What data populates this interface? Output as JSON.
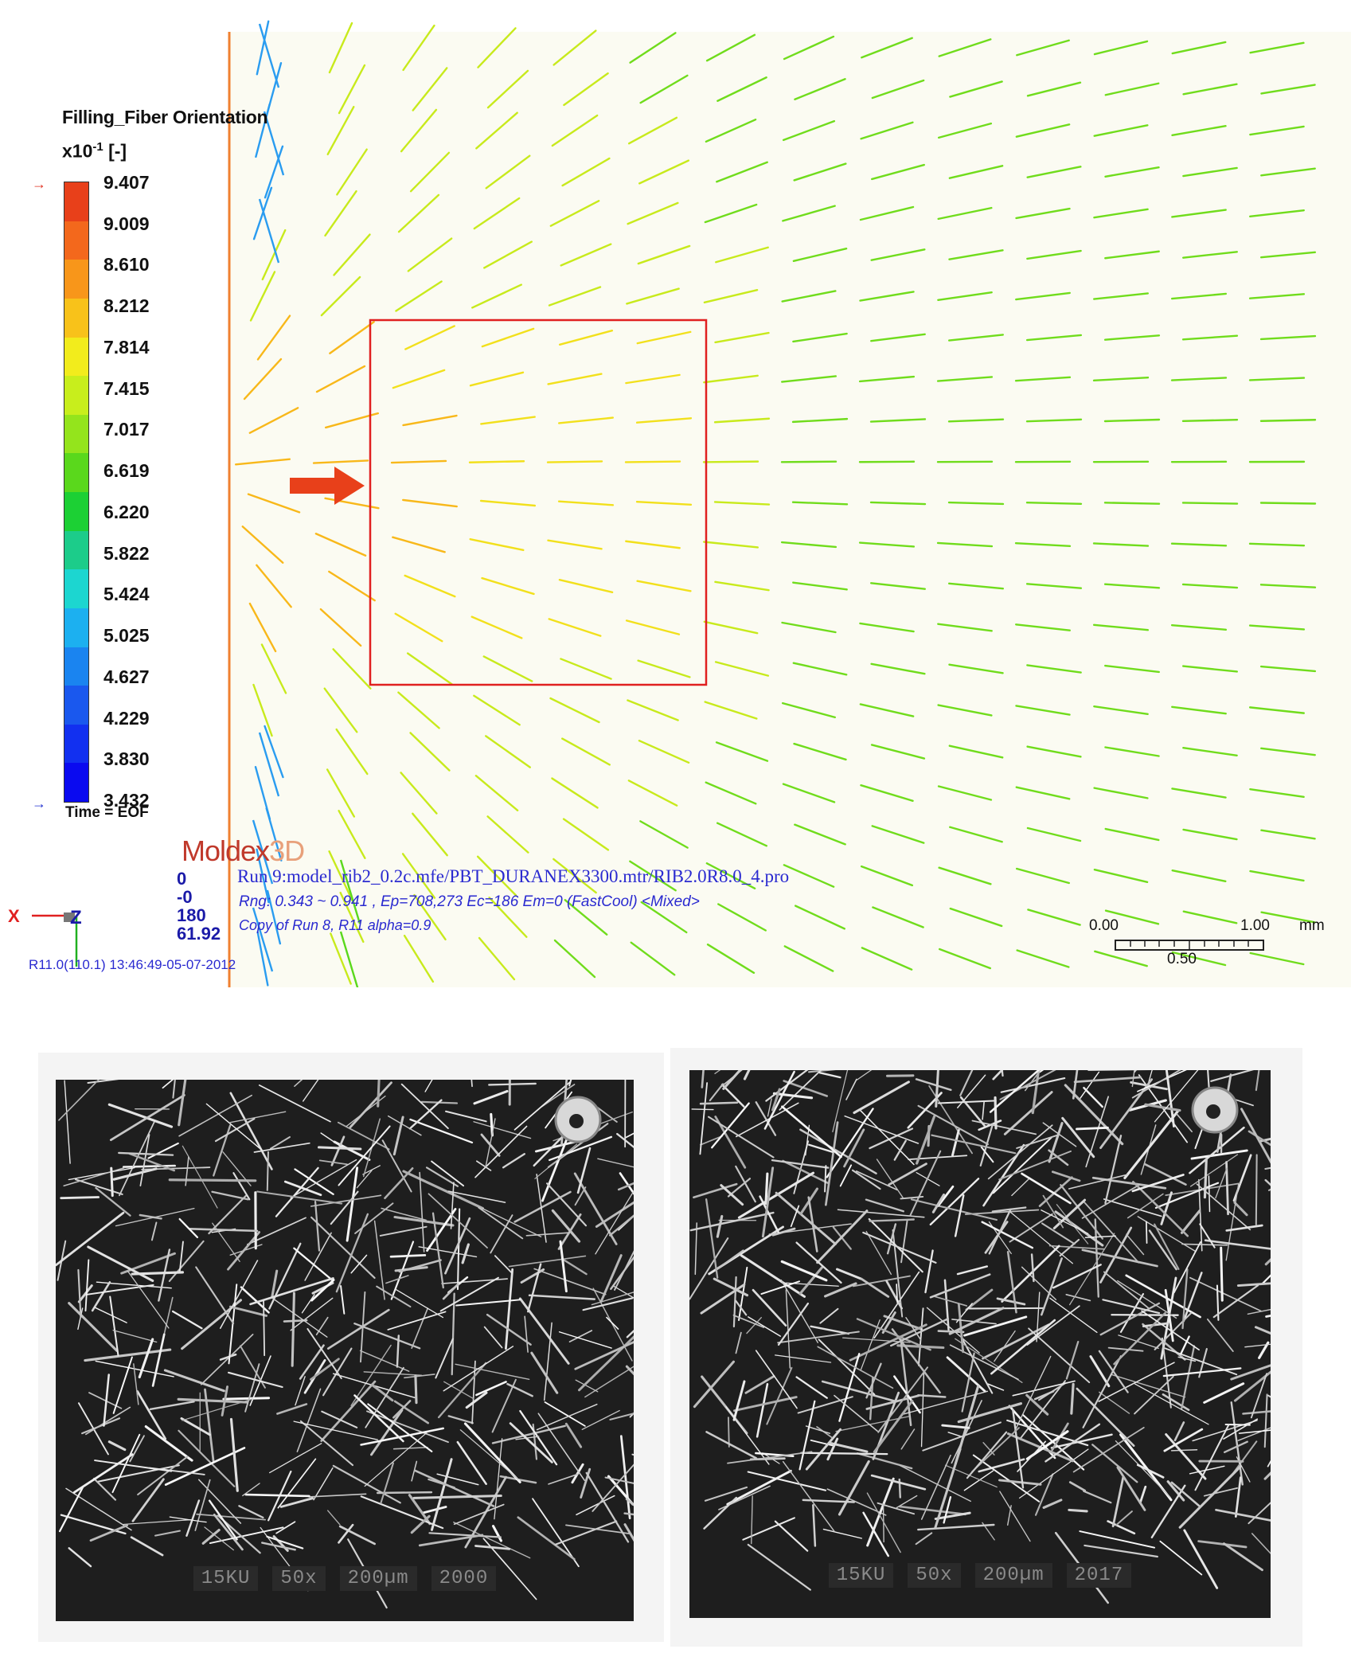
{
  "legend": {
    "title": "Filling_Fiber Orientation",
    "unit_base": "x10",
    "unit_exp": "-1",
    "unit_bracket": "[-]",
    "values": [
      "9.407",
      "9.009",
      "8.610",
      "8.212",
      "7.814",
      "7.415",
      "7.017",
      "6.619",
      "6.220",
      "5.822",
      "5.424",
      "5.025",
      "4.627",
      "4.229",
      "3.830",
      "3.432"
    ],
    "colors": [
      "#e8401a",
      "#f3681c",
      "#f8961a",
      "#f8c21a",
      "#f2ec1c",
      "#c8ee1c",
      "#94e41c",
      "#5ad81c",
      "#1cd034",
      "#1ccc8a",
      "#1cd6d0",
      "#1cb0f0",
      "#1a84f0",
      "#1a58ee",
      "#1230f0",
      "#0a0af0"
    ],
    "time": "Time = EOF"
  },
  "logo": {
    "part1": "Moldex",
    "part2": "3D"
  },
  "view_numbers": [
    "0",
    "-0",
    "180",
    "61.92"
  ],
  "run_info": "Run 9:model_rib2_0.2c.mfe/PBT_DURANEX3300.mtr/RIB2.0R8.0_4.pro",
  "range_info": "Rng: 0.343 ~ 0.941 , Ep=708,273 Ec=186 Em=0 (FastCool) <Mixed>",
  "copy_info": "Copy of Run 8, R11 alpha=0.9",
  "version": "R11.0(110.1) 13:46:49-05-07-2012",
  "axis": {
    "x": "X",
    "z": "Z"
  },
  "scale": {
    "start": "0.00",
    "end": "1.00",
    "unit": "mm",
    "mid": "0.50"
  },
  "micrographs": [
    {
      "captions": [
        "15KU",
        "50x",
        "200µm",
        "2000"
      ]
    },
    {
      "captions": [
        "15KU",
        "50x",
        "200µm",
        "2017"
      ]
    }
  ]
}
